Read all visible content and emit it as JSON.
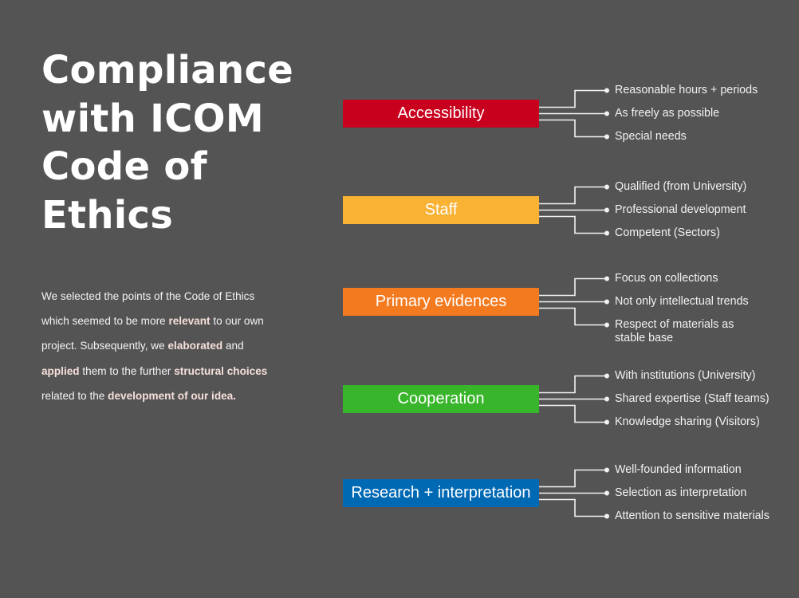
{
  "title": {
    "lines": [
      "Compliance",
      "with ICOM",
      "Code of",
      "Ethics"
    ]
  },
  "intro": {
    "lines": [
      [
        {
          "t": "We selected the points of the Code of Ethics",
          "b": false
        }
      ],
      [
        {
          "t": "which seemed to be more ",
          "b": false
        },
        {
          "t": "relevant",
          "b": true
        },
        {
          "t": " to our own",
          "b": false
        }
      ],
      [
        {
          "t": "project. Subsequently, we ",
          "b": false
        },
        {
          "t": "elaborated",
          "b": true
        },
        {
          "t": " and",
          "b": false
        }
      ],
      [
        {
          "t": "applied",
          "b": true
        },
        {
          "t": " them to the further ",
          "b": false
        },
        {
          "t": "structural choices",
          "b": true
        }
      ],
      [
        {
          "t": "related to the ",
          "b": false
        },
        {
          "t": "development of our idea.",
          "b": true
        }
      ]
    ]
  },
  "categories": [
    {
      "label": "Accessibility",
      "color": "#c8001e",
      "items": [
        "Reasonable hours + periods",
        "As freely as possible",
        "Special needs"
      ]
    },
    {
      "label": "Staff",
      "color": "#f9b233",
      "items": [
        "Qualified (from University)",
        "Professional  development",
        "Competent (Sectors)"
      ]
    },
    {
      "label": "Primary evidences",
      "color": "#f47a20",
      "items": [
        "Focus on collections",
        "Not only intellectual trends",
        "Respect of materials as\nstable base"
      ]
    },
    {
      "label": "Cooperation",
      "color": "#38b52b",
      "items": [
        "With institutions (University)",
        "Shared expertise (Staff teams)",
        "Knowledge sharing (Visitors)"
      ]
    },
    {
      "label": "Research + interpretation",
      "color": "#0069b4",
      "items": [
        "Well-founded information",
        "Selection as interpretation",
        "Attention to sensitive materials"
      ]
    }
  ],
  "colors": {
    "background": "#545454",
    "connector": "#f2f2f2"
  }
}
